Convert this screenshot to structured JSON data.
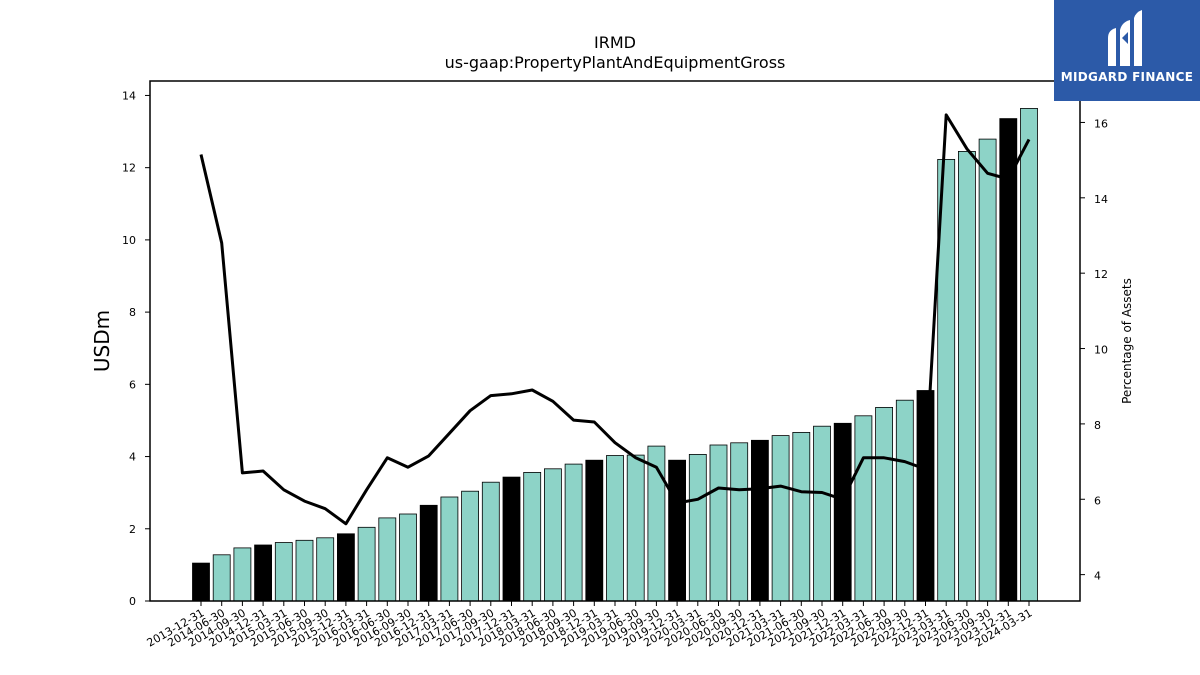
{
  "chart_data": {
    "type": "bar",
    "title": "IRMD",
    "subtitle": "us-gaap:PropertyPlantAndEquipmentGross",
    "ylabel": "USDm",
    "y2label": "Percentage of Assets",
    "ylim": [
      0,
      14.4
    ],
    "y2lim": [
      3.3,
      17.1
    ],
    "yticks": [
      0,
      2,
      4,
      6,
      8,
      10,
      12,
      14
    ],
    "y2ticks": [
      4,
      6,
      8,
      10,
      12,
      14,
      16
    ],
    "categories": [
      "2013-12-31",
      "2014-06-30",
      "2014-09-30",
      "2014-12-31",
      "2015-03-31",
      "2015-06-30",
      "2015-09-30",
      "2015-12-31",
      "2016-03-31",
      "2016-06-30",
      "2016-09-30",
      "2016-12-31",
      "2017-03-31",
      "2017-06-30",
      "2017-09-30",
      "2017-12-31",
      "2018-03-31",
      "2018-06-30",
      "2018-09-30",
      "2018-12-31",
      "2019-03-31",
      "2019-06-30",
      "2019-09-30",
      "2019-12-31",
      "2020-03-31",
      "2020-06-30",
      "2020-09-30",
      "2020-12-31",
      "2021-03-31",
      "2021-06-30",
      "2021-09-30",
      "2021-12-31",
      "2022-03-31",
      "2022-06-30",
      "2022-09-30",
      "2022-12-31",
      "2023-03-31",
      "2023-06-30",
      "2023-09-30",
      "2023-12-31",
      "2024-03-31"
    ],
    "series": [
      {
        "kind": "bar",
        "values": [
          1.05,
          1.28,
          1.47,
          1.55,
          1.62,
          1.68,
          1.75,
          1.86,
          2.04,
          2.3,
          2.41,
          2.65,
          2.88,
          3.04,
          3.29,
          3.43,
          3.56,
          3.66,
          3.79,
          3.9,
          4.03,
          4.04,
          4.29,
          3.9,
          4.06,
          4.32,
          4.38,
          4.45,
          4.58,
          4.67,
          4.84,
          4.92,
          5.13,
          5.36,
          5.56,
          5.83,
          12.23,
          12.45,
          12.79,
          13.36,
          13.64
        ],
        "year_end_flags": [
          1,
          0,
          0,
          1,
          0,
          0,
          0,
          1,
          0,
          0,
          0,
          1,
          0,
          0,
          0,
          1,
          0,
          0,
          0,
          1,
          0,
          0,
          0,
          1,
          0,
          0,
          0,
          1,
          0,
          0,
          0,
          1,
          0,
          0,
          0,
          1,
          0,
          0,
          0,
          1,
          0
        ],
        "colors": {
          "quarter": "#8dd3c7",
          "year_end": "#000000"
        }
      },
      {
        "kind": "line",
        "axis": "right",
        "values": [
          15.15,
          12.8,
          6.7,
          6.75,
          6.25,
          5.95,
          5.75,
          5.35,
          6.25,
          7.1,
          6.85,
          7.15,
          7.75,
          8.35,
          8.75,
          8.8,
          8.9,
          8.6,
          8.1,
          8.05,
          7.5,
          7.1,
          6.85,
          5.9,
          6.0,
          6.3,
          6.25,
          6.28,
          6.35,
          6.2,
          6.18,
          6.0,
          7.1,
          7.1,
          7.0,
          6.8,
          16.2,
          15.3,
          14.65,
          14.5,
          15.55
        ],
        "color": "#000000"
      }
    ]
  },
  "logo": {
    "name": "MIDGARD FINANCE",
    "bg": "#2c5aa8"
  }
}
